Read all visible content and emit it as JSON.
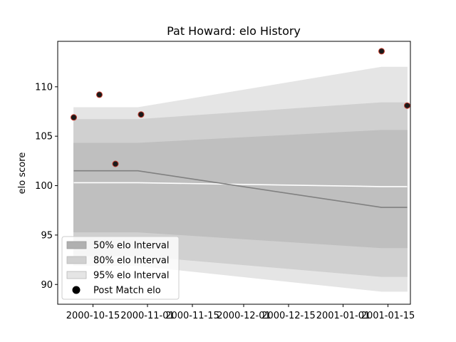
{
  "chart_data": {
    "type": "area",
    "title": "Pat Howard: elo History",
    "xlabel": "",
    "ylabel": "elo score",
    "xlim": [
      "2000-10-04",
      "2001-01-22"
    ],
    "ylim": [
      88.0,
      114.6
    ],
    "x_ticks": [
      "2000-10-15",
      "2000-11-01",
      "2000-11-15",
      "2000-12-01",
      "2000-12-15",
      "2001-01-01",
      "2001-01-15"
    ],
    "y_ticks": [
      90,
      95,
      100,
      105,
      110
    ],
    "grid": false,
    "legend": {
      "position": "lower-left",
      "entries": [
        "50% elo Interval",
        "80% elo Interval",
        "95% elo Interval",
        "Post Match elo"
      ]
    },
    "band_x": [
      "2000-10-09",
      "2000-10-29",
      "2001-01-13",
      "2001-01-21"
    ],
    "bands": [
      {
        "name": "95% elo Interval",
        "color": "#e5e5e5",
        "lower": [
          91.9,
          91.9,
          89.3,
          89.3
        ],
        "upper": [
          107.9,
          107.9,
          112.0,
          112.0
        ]
      },
      {
        "name": "80% elo Interval",
        "color": "#d0d0d0",
        "lower": [
          92.9,
          92.9,
          90.8,
          90.8
        ],
        "upper": [
          106.7,
          106.7,
          108.4,
          108.4
        ]
      },
      {
        "name": "50% elo Interval",
        "color": "#bfbfbf",
        "lower": [
          95.3,
          95.3,
          93.7,
          93.7
        ],
        "upper": [
          104.3,
          104.3,
          105.6,
          105.6
        ]
      }
    ],
    "mean_line": {
      "color": "#808080",
      "values": [
        101.5,
        101.5,
        97.8,
        97.8
      ]
    },
    "baseline_line": {
      "color": "#ffffff",
      "values": [
        100.3,
        100.3,
        99.9,
        99.9
      ]
    },
    "points": {
      "name": "Post Match elo",
      "fill": "#1a1a1a",
      "edge": "#c0392b",
      "x": [
        "2000-10-09",
        "2000-10-17",
        "2000-10-22",
        "2000-10-30",
        "2001-01-13",
        "2001-01-21"
      ],
      "y": [
        106.9,
        109.2,
        102.2,
        107.2,
        113.6,
        108.1
      ]
    }
  }
}
